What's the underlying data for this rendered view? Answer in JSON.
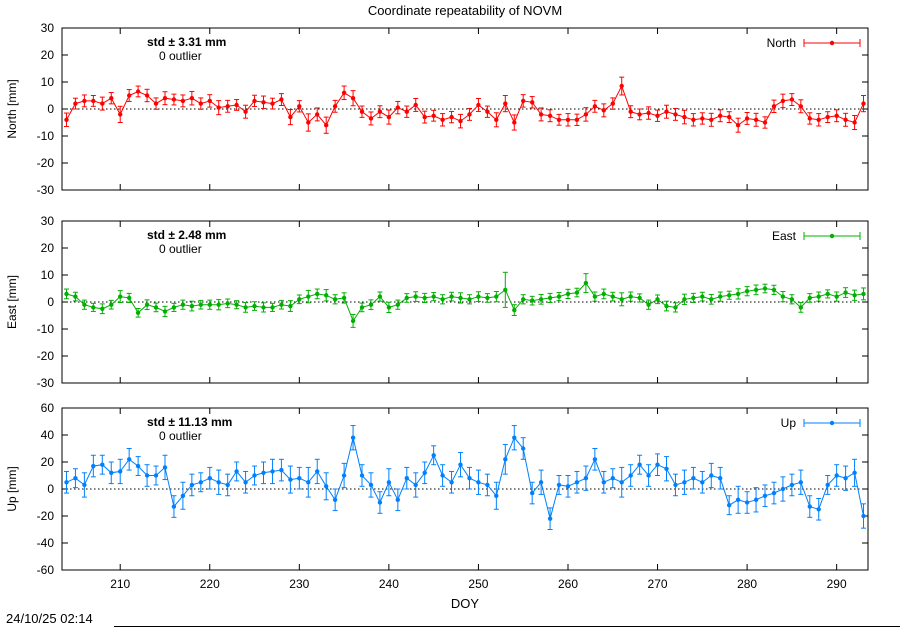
{
  "timestamp": "24/10/25 02:14",
  "chart_data": {
    "type": "line",
    "title": "Coordinate repeatability of NOVM",
    "xlabel": "DOY",
    "xlim": [
      203.5,
      293.5
    ],
    "xticks": [
      210,
      220,
      230,
      240,
      250,
      260,
      270,
      280,
      290
    ],
    "x": [
      204,
      205,
      206,
      207,
      208,
      209,
      210,
      211,
      212,
      213,
      214,
      215,
      216,
      217,
      218,
      219,
      220,
      221,
      222,
      223,
      224,
      225,
      226,
      227,
      228,
      229,
      230,
      231,
      232,
      233,
      234,
      235,
      236,
      237,
      238,
      239,
      240,
      241,
      242,
      243,
      244,
      245,
      246,
      247,
      248,
      249,
      250,
      251,
      252,
      253,
      254,
      255,
      256,
      257,
      258,
      259,
      260,
      261,
      262,
      263,
      264,
      265,
      266,
      267,
      268,
      269,
      270,
      271,
      272,
      273,
      274,
      275,
      276,
      277,
      278,
      279,
      280,
      281,
      282,
      283,
      284,
      285,
      286,
      287,
      288,
      289,
      290,
      291,
      292,
      293
    ],
    "panels": [
      {
        "name": "North",
        "ylabel": "North [mm]",
        "color": "#ff0000",
        "std_label": "std ± 3.31 mm",
        "outlier_label": "0 outlier",
        "ylim": [
          -30,
          30
        ],
        "yticks": [
          -30,
          -20,
          -10,
          0,
          10,
          20,
          30
        ],
        "y": [
          -4,
          2,
          3,
          3,
          2,
          4,
          -2,
          5,
          6.5,
          5,
          2,
          4,
          3.5,
          3,
          4,
          2,
          3,
          0.5,
          1,
          1.5,
          -1,
          3,
          2.5,
          2,
          3.5,
          -3,
          1,
          -5,
          -2,
          -6,
          1,
          6,
          4,
          -1,
          -3.5,
          -1,
          -3,
          0.5,
          -1,
          1.5,
          -3,
          -2.5,
          -4,
          -3,
          -4.5,
          -2,
          1.5,
          -1,
          -4,
          2,
          -5,
          3,
          2.5,
          -2,
          -2.5,
          -4,
          -4,
          -4,
          -2,
          1,
          -0.5,
          2,
          8.5,
          -1,
          -2,
          -1.5,
          -2.5,
          -1,
          -2,
          -3,
          -4,
          -3.5,
          -4,
          -2.5,
          -3,
          -6,
          -3.5,
          -4,
          -5,
          1,
          3,
          3.5,
          1,
          -3.5,
          -4,
          -3,
          -2.5,
          -4,
          -5,
          2
        ],
        "yerr": [
          2.5,
          2.0,
          2.2,
          2.0,
          2.4,
          2.1,
          3.0,
          2.2,
          2.0,
          2.3,
          2.1,
          2.4,
          2.0,
          2.2,
          2.5,
          2.1,
          2.3,
          2.6,
          2.2,
          2.0,
          2.4,
          2.1,
          2.3,
          2.0,
          2.2,
          2.8,
          2.1,
          3.2,
          2.4,
          3.0,
          2.2,
          2.5,
          2.8,
          2.1,
          2.4,
          2.2,
          2.6,
          2.3,
          2.1,
          2.4,
          2.2,
          2.0,
          2.3,
          2.1,
          2.5,
          2.2,
          2.4,
          2.1,
          2.6,
          3.0,
          2.8,
          2.3,
          2.1,
          2.4,
          2.2,
          2.0,
          2.3,
          2.1,
          2.5,
          2.2,
          2.4,
          2.1,
          3.3,
          2.2,
          2.0,
          2.3,
          2.1,
          2.4,
          2.2,
          2.5,
          2.3,
          2.1,
          2.4,
          2.2,
          2.0,
          2.6,
          2.2,
          2.4,
          2.1,
          2.3,
          2.5,
          2.2,
          2.4,
          2.1,
          2.3,
          2.0,
          2.2,
          2.4,
          2.6,
          3.0
        ]
      },
      {
        "name": "East",
        "ylabel": "East [mm]",
        "color": "#00b000",
        "std_label": "std ± 2.48 mm",
        "outlier_label": "0 outlier",
        "ylim": [
          -30,
          30
        ],
        "yticks": [
          -30,
          -20,
          -10,
          0,
          10,
          20,
          30
        ],
        "y": [
          3,
          2,
          -1,
          -2,
          -2.5,
          -1,
          2,
          1.5,
          -4,
          -1,
          -2,
          -3.5,
          -2,
          -1,
          -1.5,
          -1,
          -1,
          -1,
          -0.5,
          -1,
          -2,
          -1.5,
          -2,
          -2,
          -1,
          -1.5,
          1,
          2,
          3,
          2.5,
          1,
          1.5,
          -7,
          -2,
          -1,
          2,
          -2,
          -1,
          1.5,
          2,
          1.5,
          2,
          1,
          2,
          1.5,
          1,
          2,
          1.5,
          2,
          4.5,
          -3,
          1,
          0.5,
          1,
          1.5,
          2,
          3,
          3.5,
          7,
          2,
          3,
          2,
          1,
          2,
          1.5,
          -1,
          1,
          -1.5,
          -2,
          1,
          1.5,
          2,
          1,
          2,
          2.5,
          3,
          4,
          4.5,
          5,
          4.5,
          2,
          1,
          -2,
          1.5,
          2,
          3,
          2,
          3.5,
          2.5,
          3
        ],
        "yerr": [
          1.8,
          1.6,
          1.7,
          1.5,
          1.8,
          1.6,
          2.2,
          1.7,
          1.6,
          1.8,
          1.6,
          1.9,
          1.5,
          1.7,
          1.8,
          1.6,
          1.7,
          1.9,
          1.6,
          1.5,
          1.8,
          1.6,
          1.7,
          1.5,
          1.6,
          2.0,
          1.6,
          2.3,
          1.8,
          2.1,
          1.7,
          1.9,
          2.4,
          1.6,
          1.8,
          1.7,
          1.9,
          1.7,
          1.6,
          1.8,
          1.7,
          1.5,
          1.7,
          1.6,
          1.9,
          1.7,
          1.8,
          1.6,
          1.9,
          6.5,
          2.0,
          1.7,
          1.6,
          1.8,
          1.7,
          1.5,
          1.7,
          1.6,
          3.5,
          1.7,
          1.8,
          1.6,
          2.4,
          1.7,
          1.5,
          1.7,
          1.6,
          1.8,
          1.7,
          1.9,
          1.7,
          1.6,
          1.8,
          1.7,
          1.5,
          1.9,
          1.7,
          1.8,
          1.6,
          1.7,
          1.9,
          1.7,
          1.8,
          1.6,
          1.7,
          1.5,
          1.7,
          1.8,
          1.9,
          2.2
        ]
      },
      {
        "name": "Up",
        "ylabel": "Up [mm]",
        "color": "#0080ff",
        "std_label": "std ± 11.13 mm",
        "outlier_label": "0 outlier",
        "ylim": [
          -60,
          60
        ],
        "yticks": [
          -60,
          -40,
          -20,
          0,
          20,
          40,
          60
        ],
        "y": [
          5,
          8,
          3,
          17,
          18,
          12,
          13,
          22,
          17,
          10,
          10,
          16,
          -13,
          -5,
          3,
          5,
          8,
          5,
          3,
          13,
          5,
          10,
          12,
          13,
          14,
          7,
          8,
          5,
          13,
          2,
          -8,
          10,
          38,
          10,
          3,
          -10,
          5,
          -8,
          8,
          3,
          12,
          25,
          10,
          5,
          18,
          8,
          5,
          3,
          -5,
          22,
          38,
          30,
          -3,
          5,
          -22,
          3,
          2,
          5,
          8,
          22,
          5,
          8,
          5,
          10,
          18,
          10,
          18,
          15,
          3,
          5,
          8,
          5,
          10,
          8,
          -12,
          -8,
          -10,
          -8,
          -5,
          -3,
          0,
          3,
          5,
          -13,
          -15,
          3,
          10,
          8,
          12,
          -20
        ],
        "yerr": [
          8,
          7,
          9,
          8,
          7,
          8,
          9,
          8,
          7,
          8,
          7,
          9,
          8,
          10,
          8,
          7,
          8,
          9,
          8,
          7,
          8,
          7,
          8,
          9,
          8,
          10,
          8,
          11,
          9,
          10,
          8,
          9,
          9,
          8,
          9,
          8,
          10,
          8,
          8,
          9,
          8,
          7,
          8,
          8,
          9,
          8,
          9,
          8,
          10,
          11,
          9,
          8,
          8,
          9,
          8,
          7,
          8,
          8,
          9,
          8,
          8,
          7,
          11,
          8,
          7,
          8,
          8,
          9,
          8,
          9,
          8,
          8,
          9,
          8,
          7,
          10,
          8,
          9,
          8,
          8,
          9,
          8,
          9,
          8,
          8,
          7,
          8,
          9,
          10,
          9
        ]
      }
    ]
  }
}
